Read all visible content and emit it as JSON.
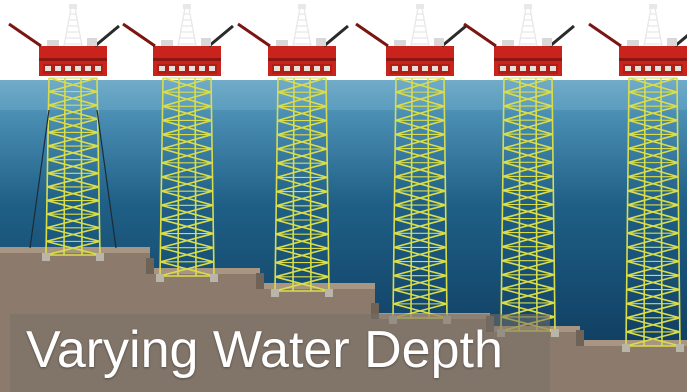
{
  "caption": "Varying Water Depth",
  "platform_count": 6,
  "colors": {
    "sky": "#ffffff",
    "sea_top": "#4f93b8",
    "sea_bottom": "#0c3557",
    "seabed": "#8c7a6c",
    "seabed_top": "#a89582",
    "jacket": "#d9dd4a",
    "deck": "#c9231c",
    "derrick": "#e8e8e8",
    "crane": "#2a2a2a"
  }
}
